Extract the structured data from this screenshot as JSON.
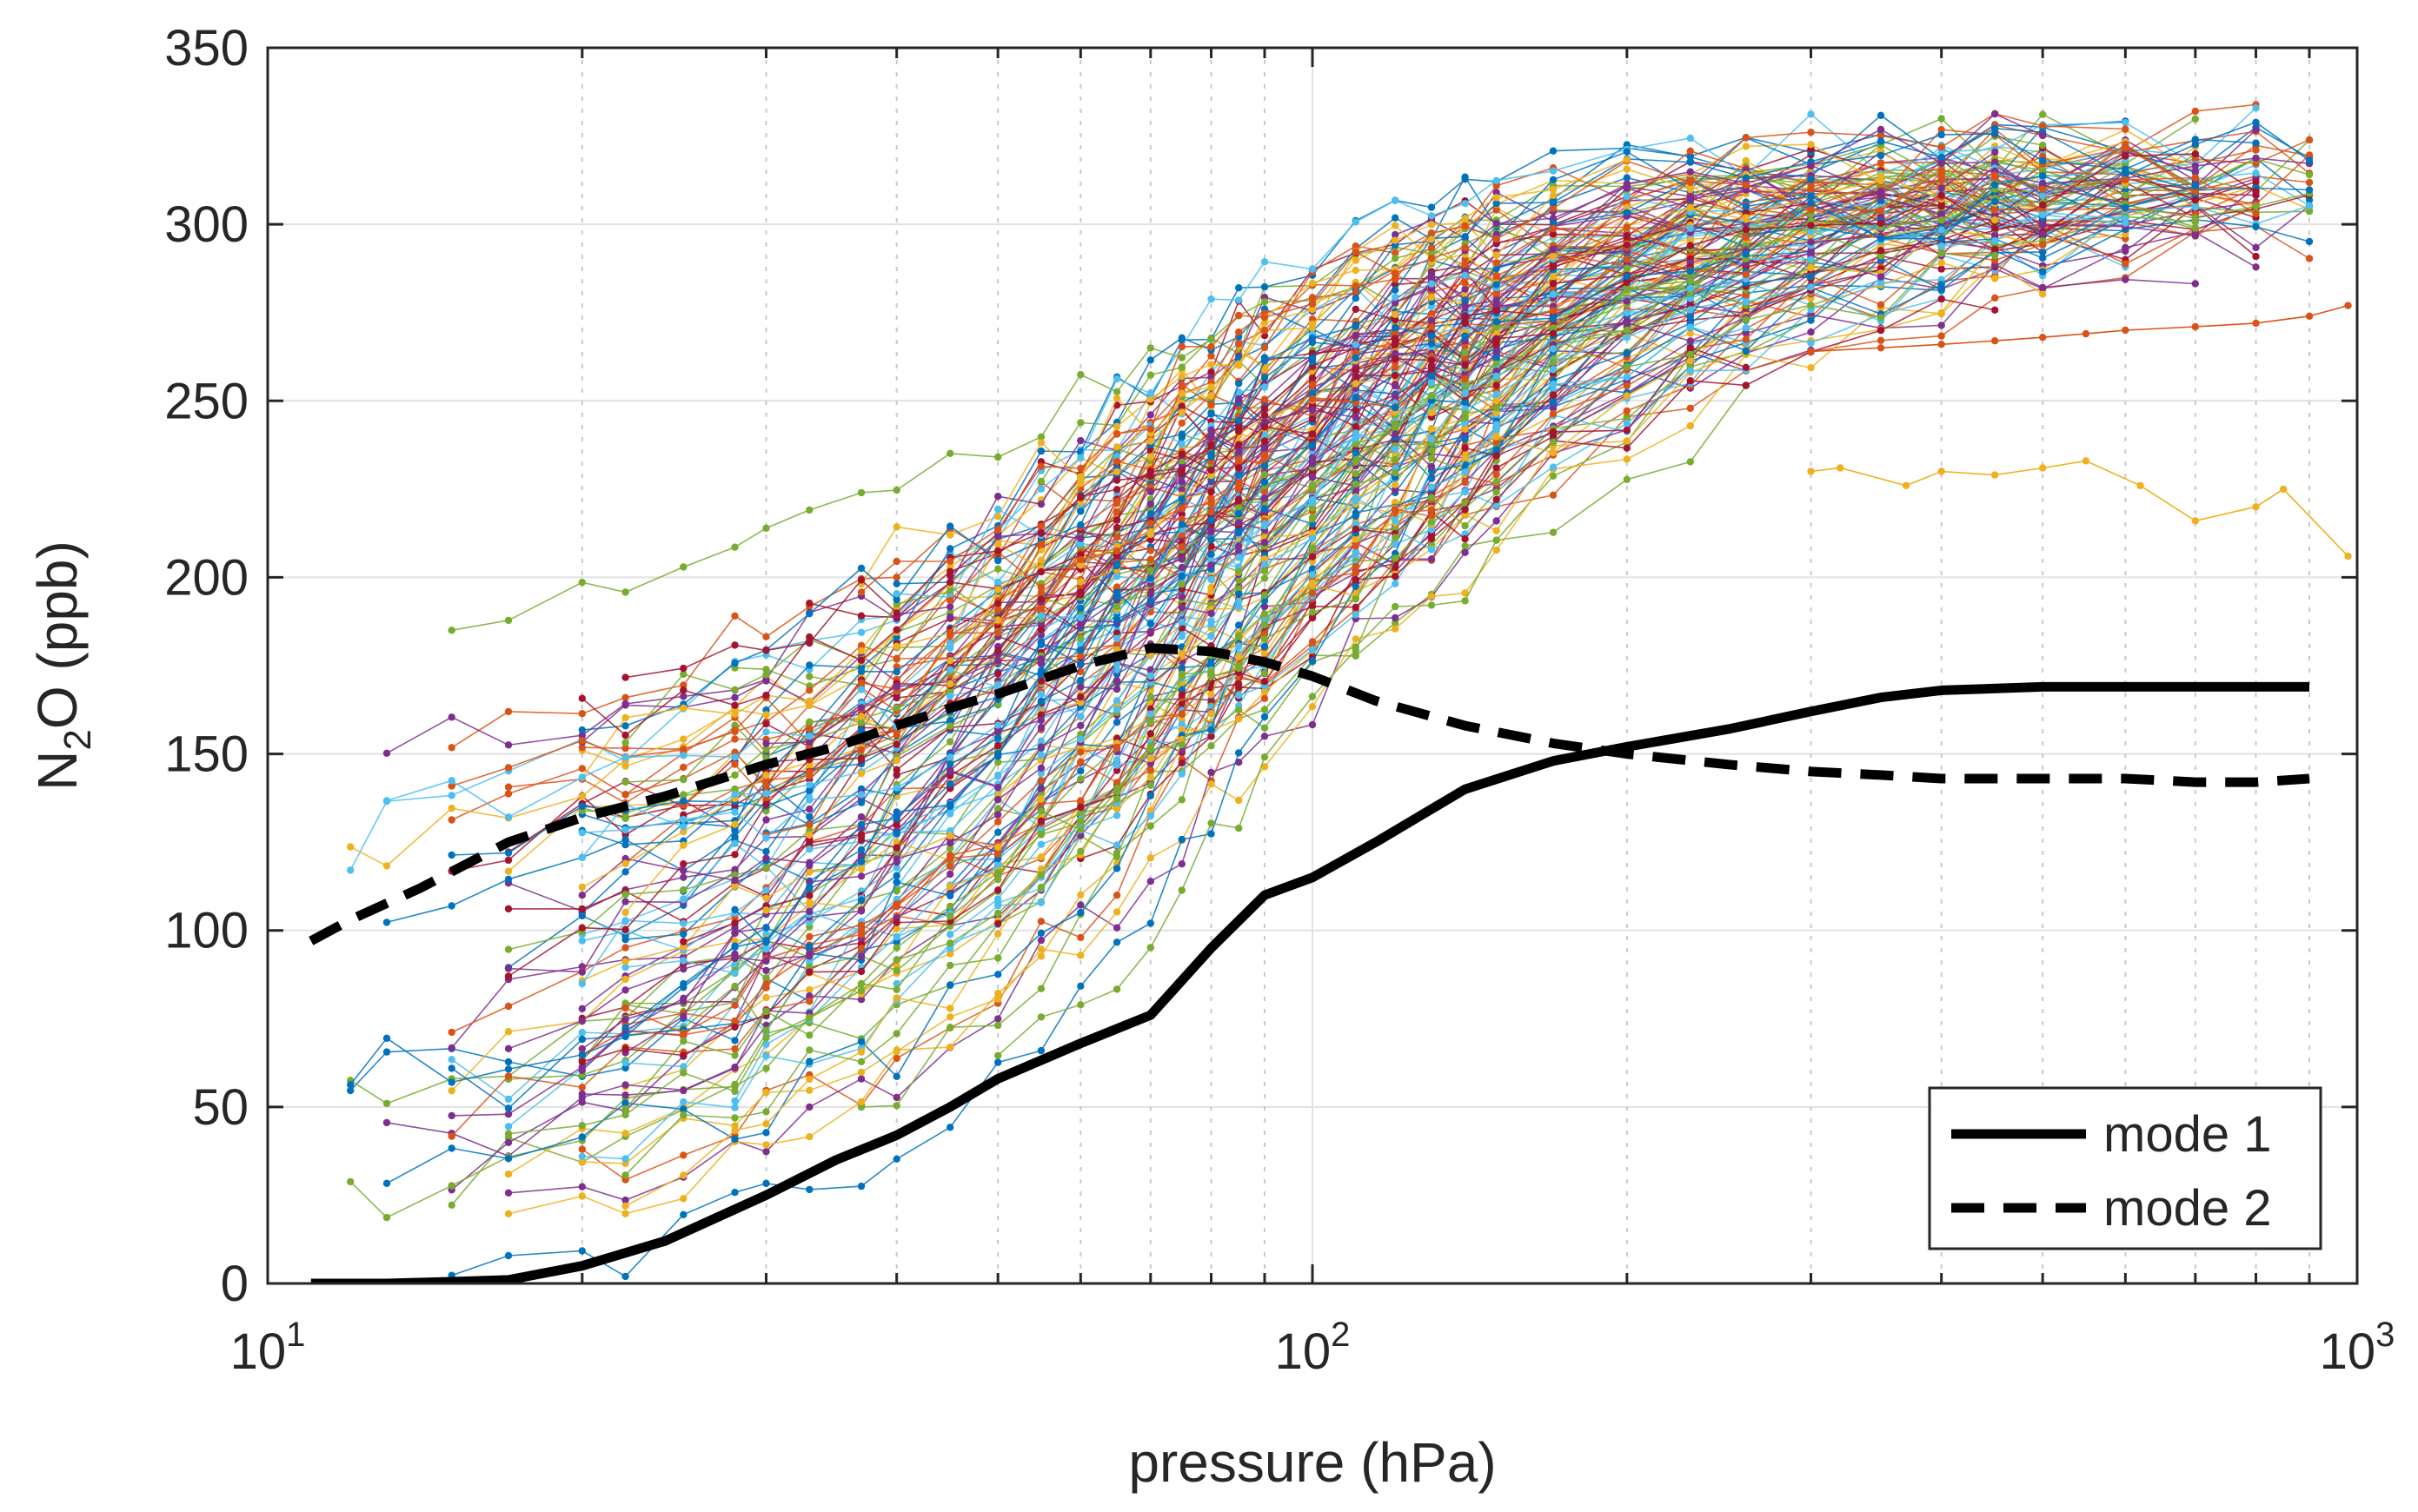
{
  "chart_data": {
    "type": "line",
    "xscale": "log",
    "xlabel": "pressure (hPa)",
    "ylabel_main": "N",
    "ylabel_sub": "2",
    "ylabel_tail": "O (ppb)",
    "xlim": [
      10,
      1000
    ],
    "ylim": [
      0,
      350
    ],
    "grid": true,
    "y_ticks": [
      0,
      50,
      100,
      150,
      200,
      250,
      300,
      350
    ],
    "x_ticks": [
      {
        "value": 10,
        "base": "10",
        "exp": "1"
      },
      {
        "value": 100,
        "base": "10",
        "exp": "2"
      },
      {
        "value": 1000,
        "base": "10",
        "exp": "3"
      }
    ],
    "legend": {
      "position": "bottom-right",
      "entries": [
        "mode 1",
        "mode 2"
      ]
    },
    "series": [
      {
        "name": "mode 1",
        "style": "solid",
        "color": "#000000",
        "x": [
          11,
          12,
          13,
          15,
          17,
          20,
          24,
          30,
          35,
          40,
          45,
          50,
          60,
          70,
          80,
          90,
          100,
          115,
          140,
          170,
          200,
          250,
          300,
          350,
          400,
          500,
          600,
          700,
          800,
          900
        ],
        "y": [
          0,
          0,
          0,
          0.5,
          1,
          5,
          12,
          25,
          35,
          42,
          50,
          58,
          68,
          76,
          95,
          110,
          115,
          125,
          140,
          148,
          152,
          157,
          162,
          166,
          168,
          169,
          169,
          169,
          169,
          169
        ]
      },
      {
        "name": "mode 2",
        "style": "dashed",
        "color": "#000000",
        "x": [
          11,
          12,
          14,
          17,
          20,
          24,
          30,
          35,
          40,
          45,
          50,
          60,
          70,
          80,
          90,
          100,
          115,
          140,
          170,
          200,
          250,
          300,
          350,
          400,
          500,
          600,
          700,
          800,
          900
        ],
        "y": [
          97,
          103,
          112,
          125,
          132,
          138,
          147,
          152,
          158,
          163,
          167,
          175,
          180,
          179,
          176,
          172,
          165,
          158,
          153,
          150,
          147,
          145,
          144,
          143,
          143,
          143,
          142,
          142,
          143
        ]
      }
    ],
    "background_profiles": {
      "description": "hundreds of colored individual N2O measurement profiles with dot markers",
      "palette": [
        "#0072BD",
        "#D95319",
        "#EDB120",
        "#7E2F8E",
        "#77AC30",
        "#4DBEEE",
        "#A2142F"
      ]
    }
  }
}
